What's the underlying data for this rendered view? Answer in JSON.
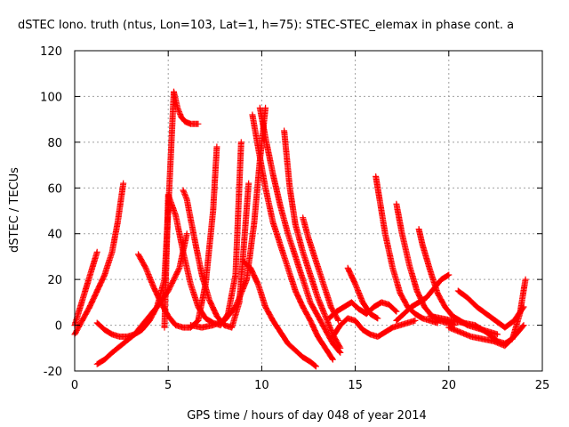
{
  "chart_data": {
    "type": "scatter",
    "title": "dSTEC Iono. truth (ntus, Lon=103, Lat=1, h=75): STEC-STEC_elemax in phase cont. a",
    "xlabel": "GPS time / hours of day 048 of year 2014",
    "ylabel": "dSTEC  / TECUs",
    "xlim": [
      0,
      25
    ],
    "ylim": [
      -20,
      120
    ],
    "xticks": [
      0,
      5,
      10,
      15,
      20,
      25
    ],
    "yticks": [
      -20,
      0,
      20,
      40,
      60,
      80,
      100,
      120
    ],
    "xtick_labels": [
      "0",
      "5",
      "10",
      "15",
      "20",
      "25"
    ],
    "ytick_labels": [
      "-20",
      "0",
      "20",
      "40",
      "60",
      "80",
      "100",
      "120"
    ],
    "grid": true,
    "marker": "+",
    "color": "#ff0000",
    "series": [
      {
        "x": [
          0.0,
          0.3,
          0.6,
          0.9,
          1.2
        ],
        "y": [
          0,
          8,
          16,
          24,
          32
        ]
      },
      {
        "x": [
          0.0,
          0.4,
          0.8,
          1.2,
          1.6,
          2.0,
          2.3,
          2.6
        ],
        "y": [
          -4,
          2,
          8,
          15,
          22,
          32,
          45,
          62
        ]
      },
      {
        "x": [
          1.2,
          1.6,
          2.0,
          2.4,
          2.8,
          3.2,
          3.6,
          4.0,
          4.4,
          4.8,
          5.0,
          5.3
        ],
        "y": [
          1,
          -2,
          -4,
          -5,
          -5,
          -4,
          -2,
          2,
          8,
          20,
          50,
          102
        ]
      },
      {
        "x": [
          5.3,
          5.5,
          5.7,
          5.9,
          6.2,
          6.6
        ],
        "y": [
          102,
          95,
          91,
          89,
          88,
          88
        ]
      },
      {
        "x": [
          3.4,
          3.8,
          4.2,
          4.6,
          5.0,
          5.4,
          5.8,
          6.2,
          6.6,
          7.0,
          7.4,
          7.6
        ],
        "y": [
          31,
          25,
          17,
          10,
          4,
          0,
          -1,
          -1,
          2,
          18,
          50,
          78
        ]
      },
      {
        "x": [
          4.8,
          5.0,
          5.4,
          5.8,
          6.2,
          6.6,
          7.0,
          7.4,
          7.8,
          8.2,
          8.6,
          8.9
        ],
        "y": [
          -1,
          57,
          48,
          32,
          18,
          8,
          3,
          1,
          0,
          5,
          22,
          80
        ]
      },
      {
        "x": [
          1.2,
          1.6,
          2.0,
          2.6,
          3.2,
          3.8,
          4.4,
          5.0,
          5.6,
          6.0
        ],
        "y": [
          -17,
          -15,
          -12,
          -8,
          -4,
          2,
          8,
          15,
          25,
          40
        ]
      },
      {
        "x": [
          5.8,
          6.0,
          6.4,
          6.8,
          7.2,
          7.6,
          8.0,
          8.4,
          8.8,
          9.0,
          9.3
        ],
        "y": [
          59,
          55,
          38,
          22,
          11,
          4,
          0,
          -1,
          10,
          30,
          62
        ]
      },
      {
        "x": [
          6.2,
          6.8,
          7.4,
          8.0,
          8.6,
          9.2,
          9.6,
          9.9,
          10.2
        ],
        "y": [
          0,
          -1,
          0,
          2,
          8,
          20,
          45,
          72,
          95
        ]
      },
      {
        "x": [
          9.5,
          9.8,
          10.2,
          10.6,
          11.0,
          11.4,
          11.8,
          12.2,
          12.6,
          13.0,
          13.4,
          13.8
        ],
        "y": [
          92,
          78,
          60,
          45,
          35,
          25,
          15,
          8,
          2,
          -5,
          -10,
          -15
        ]
      },
      {
        "x": [
          9.9,
          10.2,
          10.6,
          11.0,
          11.4,
          11.8,
          12.2,
          12.6,
          13.0,
          13.4,
          13.8,
          14.2
        ],
        "y": [
          95,
          82,
          66,
          52,
          40,
          30,
          20,
          10,
          4,
          -2,
          -8,
          -12
        ]
      },
      {
        "x": [
          9.0,
          9.4,
          9.8,
          10.2,
          10.6,
          11.0,
          11.4,
          11.8,
          12.2,
          12.6,
          12.9
        ],
        "y": [
          28,
          25,
          18,
          8,
          2,
          -3,
          -8,
          -11,
          -14,
          -16,
          -18
        ]
      },
      {
        "x": [
          11.2,
          11.5,
          11.8,
          12.2,
          12.6,
          13.0,
          13.4,
          13.8,
          14.2
        ],
        "y": [
          85,
          60,
          44,
          32,
          22,
          12,
          4,
          -4,
          -10
        ]
      },
      {
        "x": [
          12.2,
          12.5,
          12.9,
          13.3,
          13.7,
          14.1
        ],
        "y": [
          47,
          38,
          28,
          18,
          8,
          2
        ]
      },
      {
        "x": [
          13.6,
          14.0,
          14.4,
          14.8,
          15.2,
          15.6,
          16.0,
          16.4,
          16.8,
          17.2
        ],
        "y": [
          3,
          6,
          8,
          10,
          7,
          5,
          8,
          10,
          9,
          6
        ]
      },
      {
        "x": [
          13.8,
          14.2,
          14.6,
          15.0,
          15.4,
          15.8,
          16.2,
          16.6,
          17.0,
          17.4,
          17.8,
          18.2
        ],
        "y": [
          -5,
          0,
          3,
          2,
          -2,
          -4,
          -5,
          -3,
          -1,
          0,
          1,
          2
        ]
      },
      {
        "x": [
          14.6,
          15.0,
          15.4,
          15.8,
          16.2
        ],
        "y": [
          25,
          18,
          10,
          5,
          3
        ]
      },
      {
        "x": [
          16.1,
          16.3,
          16.6,
          17.0,
          17.4,
          17.8,
          18.2,
          18.6,
          19.0,
          19.4
        ],
        "y": [
          65,
          55,
          40,
          25,
          14,
          8,
          5,
          3,
          2,
          1
        ]
      },
      {
        "x": [
          17.2,
          17.5,
          17.9,
          18.3,
          18.7,
          19.1,
          19.5,
          19.9,
          20.3
        ],
        "y": [
          53,
          40,
          26,
          15,
          8,
          4,
          2,
          1,
          0
        ]
      },
      {
        "x": [
          18.4,
          18.6,
          19.0,
          19.4,
          19.8,
          20.2,
          20.6,
          21.0,
          21.4,
          21.8,
          22.2,
          22.6
        ],
        "y": [
          42,
          35,
          24,
          14,
          8,
          4,
          2,
          0,
          -1,
          -2,
          -3,
          -4
        ]
      },
      {
        "x": [
          17.2,
          17.6,
          18.0,
          18.4,
          18.8,
          19.2,
          19.6,
          20.0
        ],
        "y": [
          2,
          5,
          8,
          10,
          12,
          16,
          20,
          22
        ]
      },
      {
        "x": [
          20.5,
          21.0,
          21.5,
          22.0,
          22.5,
          23.0,
          23.5,
          24.0
        ],
        "y": [
          15,
          12,
          8,
          5,
          2,
          -1,
          2,
          8
        ]
      },
      {
        "x": [
          19.0,
          19.6,
          20.2,
          20.8,
          21.4,
          22.0,
          22.6,
          23.0,
          23.4,
          23.8,
          24.1
        ],
        "y": [
          4,
          3,
          2,
          1,
          0,
          -3,
          -7,
          -8,
          -6,
          5,
          20
        ]
      },
      {
        "x": [
          20.0,
          20.6,
          21.2,
          21.8,
          22.4,
          23.0,
          23.6,
          24.0
        ],
        "y": [
          -1,
          -3,
          -5,
          -6,
          -7,
          -9,
          -4,
          0
        ]
      }
    ]
  }
}
